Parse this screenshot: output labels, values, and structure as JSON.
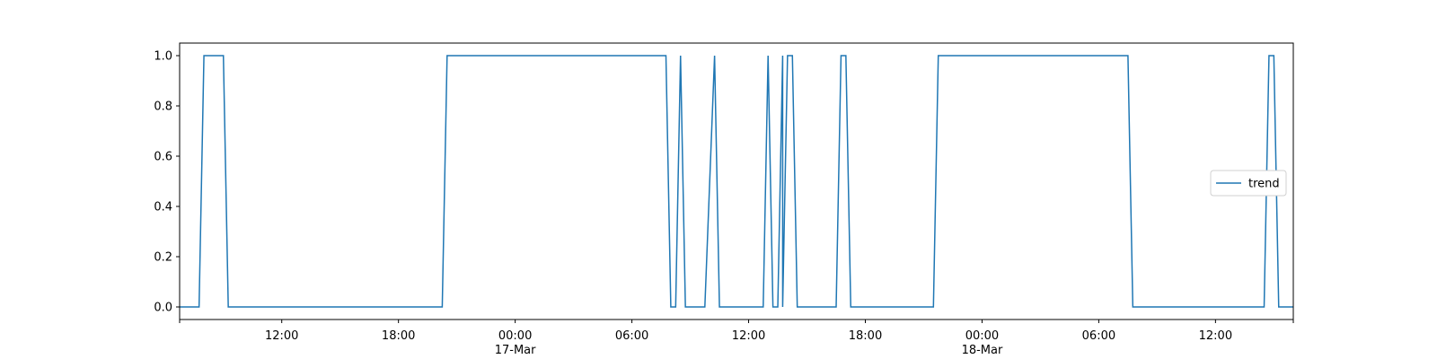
{
  "chart_data": {
    "type": "line",
    "title": "",
    "xlabel": "",
    "ylabel": "",
    "xlim": [
      "2023-03-16 06:45",
      "2023-03-18 16:00"
    ],
    "ylim": [
      -0.05,
      1.05
    ],
    "grid": false,
    "legend_position": "right",
    "line_color": "#1f77b4",
    "y_ticks": [
      {
        "value": 0.0,
        "label": "0.0"
      },
      {
        "value": 0.2,
        "label": "0.2"
      },
      {
        "value": 0.4,
        "label": "0.4"
      },
      {
        "value": 0.6,
        "label": "0.6"
      },
      {
        "value": 0.8,
        "label": "0.8"
      },
      {
        "value": 1.0,
        "label": "1.0"
      }
    ],
    "x_ticks": [
      {
        "value": "2023-03-16 12:00",
        "label": "12:00",
        "sublabel": ""
      },
      {
        "value": "2023-03-16 18:00",
        "label": "18:00",
        "sublabel": ""
      },
      {
        "value": "2023-03-17 00:00",
        "label": "00:00",
        "sublabel": "17-Mar"
      },
      {
        "value": "2023-03-17 06:00",
        "label": "06:00",
        "sublabel": ""
      },
      {
        "value": "2023-03-17 12:00",
        "label": "12:00",
        "sublabel": ""
      },
      {
        "value": "2023-03-17 18:00",
        "label": "18:00",
        "sublabel": ""
      },
      {
        "value": "2023-03-18 00:00",
        "label": "00:00",
        "sublabel": "18-Mar"
      },
      {
        "value": "2023-03-18 06:00",
        "label": "06:00",
        "sublabel": ""
      },
      {
        "value": "2023-03-18 12:00",
        "label": "12:00",
        "sublabel": ""
      }
    ],
    "x_minor_ticks": [
      "2023-03-16 06:45",
      "2023-03-18 16:00"
    ],
    "series": [
      {
        "name": "trend",
        "x": [
          "2023-03-16 06:45",
          "2023-03-16 07:45",
          "2023-03-16 08:00",
          "2023-03-16 09:00",
          "2023-03-16 09:15",
          "2023-03-16 20:15",
          "2023-03-16 20:30",
          "2023-03-17 07:45",
          "2023-03-17 08:00",
          "2023-03-17 08:15",
          "2023-03-17 08:30",
          "2023-03-17 08:45",
          "2023-03-17 09:45",
          "2023-03-17 10:15",
          "2023-03-17 10:30",
          "2023-03-17 12:45",
          "2023-03-17 13:00",
          "2023-03-17 13:15",
          "2023-03-17 13:30",
          "2023-03-17 13:45",
          "2023-03-17 13:45",
          "2023-03-17 14:00",
          "2023-03-17 14:15",
          "2023-03-17 14:30",
          "2023-03-17 16:30",
          "2023-03-17 16:45",
          "2023-03-17 17:00",
          "2023-03-17 17:15",
          "2023-03-17 21:30",
          "2023-03-17 21:45",
          "2023-03-18 07:30",
          "2023-03-18 07:45",
          "2023-03-18 14:30",
          "2023-03-18 14:45",
          "2023-03-18 15:00",
          "2023-03-18 15:15",
          "2023-03-18 16:00"
        ],
        "y": [
          0,
          0,
          1,
          1,
          0,
          0,
          1,
          1,
          0,
          0,
          1,
          0,
          0,
          1,
          0,
          0,
          1,
          0,
          0,
          1,
          0,
          1,
          1,
          0,
          0,
          1,
          1,
          0,
          0,
          1,
          1,
          0,
          0,
          1,
          1,
          0,
          0
        ]
      }
    ]
  }
}
